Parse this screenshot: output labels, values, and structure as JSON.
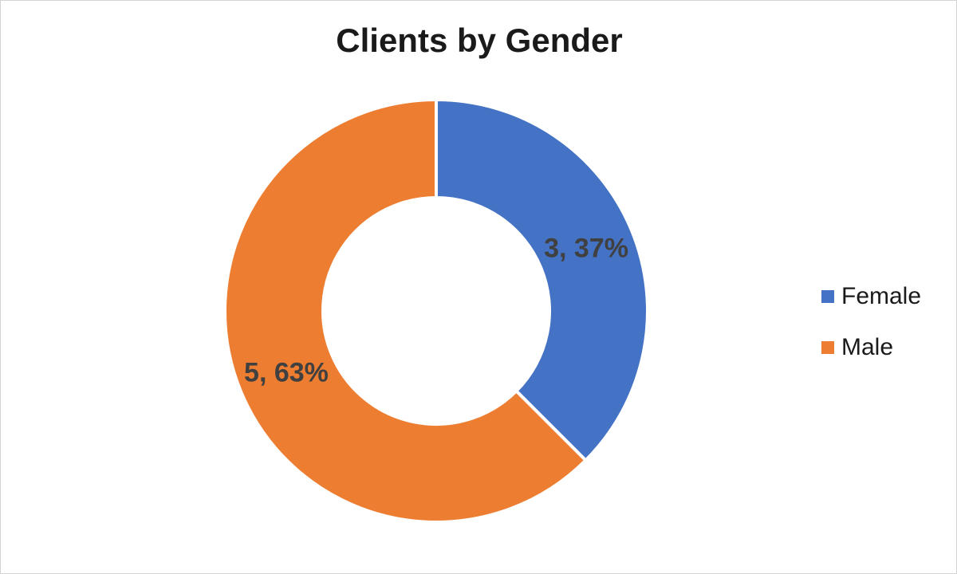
{
  "window": {
    "background": "#ffffff",
    "frame_border_color": "#d2d2d7"
  },
  "chart_data": {
    "type": "pie",
    "subtype": "doughnut",
    "title": "Clients by Gender",
    "categories": [
      "Female",
      "Male"
    ],
    "values": [
      3,
      5
    ],
    "percent_labels": [
      "37%",
      "63%"
    ],
    "data_labels": [
      "3, 37%",
      "5, 63%"
    ],
    "colors": [
      "#4472C4",
      "#ED7D31"
    ],
    "start_angle_deg": 0,
    "direction": "clockwise",
    "hole_ratio": 0.536,
    "slice_border_color": "#ffffff",
    "slice_border_width": 4,
    "data_label_color": "#404040",
    "title_color": "#1a1a1a",
    "legend_position": "right",
    "legend_text_color": "#1a1a1a",
    "legend": {
      "items": [
        {
          "label": "Female",
          "color": "#4472C4"
        },
        {
          "label": "Male",
          "color": "#ED7D31"
        }
      ]
    }
  }
}
